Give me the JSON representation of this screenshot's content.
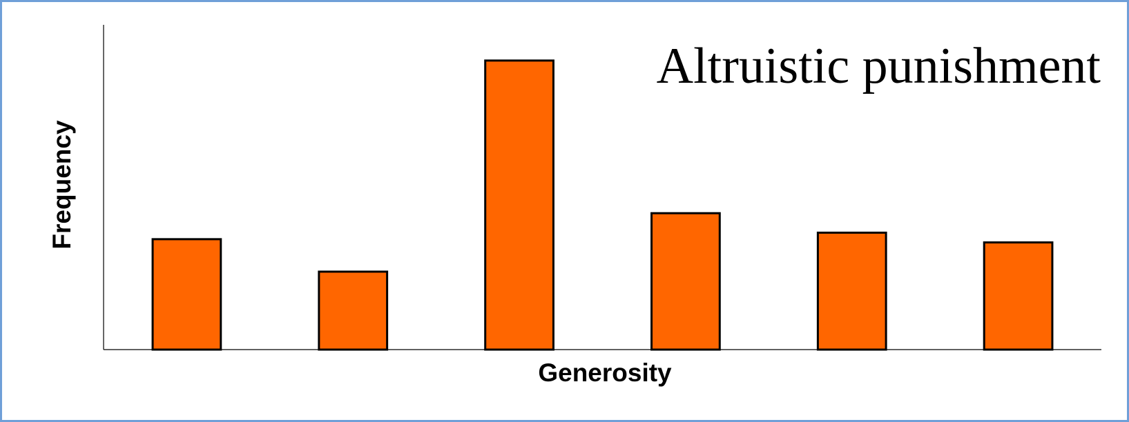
{
  "chart_data": {
    "type": "bar",
    "title": "Altruistic punishment",
    "x_label": "Generosity",
    "y_label": "Frequency",
    "categories": [
      null,
      null,
      null,
      null,
      null,
      null
    ],
    "values": [
      34,
      24,
      89,
      42,
      36,
      33
    ],
    "color": "#ff6600",
    "ylim": [
      0,
      100
    ]
  }
}
